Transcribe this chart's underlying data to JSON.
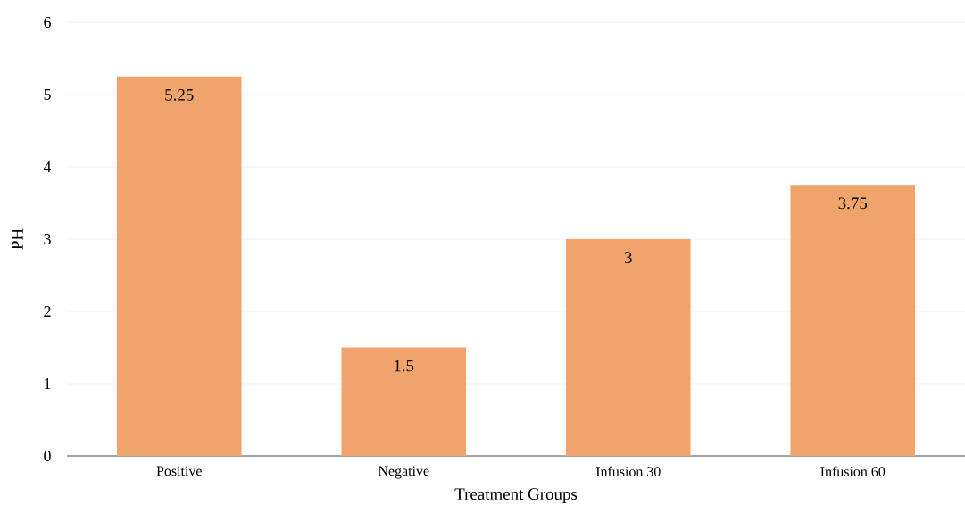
{
  "chart_data": {
    "type": "bar",
    "xlabel": "Treatment Groups",
    "ylabel": "PH",
    "categories": [
      "Positive",
      "Negative",
      "Infusion 30",
      "Infusion 60"
    ],
    "values": [
      5.25,
      1.5,
      3,
      3.75
    ],
    "color": "#f0a46c",
    "ylim": [
      0,
      6
    ],
    "yticks": [
      0,
      1,
      2,
      3,
      4,
      5,
      6
    ],
    "grid": "y",
    "data_labels": true
  }
}
